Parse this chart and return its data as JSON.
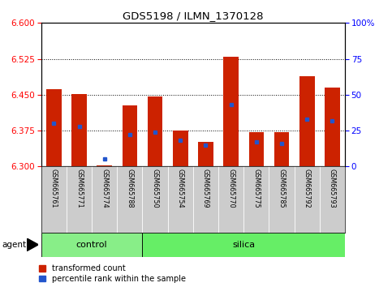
{
  "title": "GDS5198 / ILMN_1370128",
  "samples": [
    "GSM665761",
    "GSM665771",
    "GSM665774",
    "GSM665788",
    "GSM665750",
    "GSM665754",
    "GSM665769",
    "GSM665770",
    "GSM665775",
    "GSM665785",
    "GSM665792",
    "GSM665793"
  ],
  "red_values": [
    6.462,
    6.452,
    6.302,
    6.428,
    6.447,
    6.375,
    6.352,
    6.53,
    6.372,
    6.372,
    6.488,
    6.465
  ],
  "blue_percentiles": [
    30,
    28,
    5,
    22,
    24,
    18,
    15,
    43,
    17,
    16,
    33,
    32
  ],
  "y_min": 6.3,
  "y_max": 6.6,
  "y_ticks": [
    6.3,
    6.375,
    6.45,
    6.525,
    6.6
  ],
  "right_y_ticks": [
    0,
    25,
    50,
    75,
    100
  ],
  "right_y_labels": [
    "0",
    "25",
    "50",
    "75",
    "100%"
  ],
  "bar_color": "#cc2200",
  "dot_color": "#2255cc",
  "control_color": "#88ee88",
  "silica_color": "#66ee66",
  "sample_bg_color": "#cccccc",
  "legend_labels": [
    "transformed count",
    "percentile rank within the sample"
  ],
  "n_control": 4,
  "n_silica": 8
}
